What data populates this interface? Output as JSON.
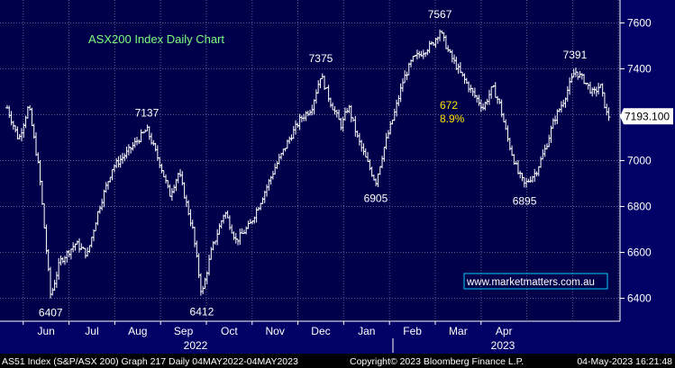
{
  "chart_data": {
    "type": "line",
    "style": "daily price bars",
    "title": "ASX200 Index Daily Chart",
    "watermark": "www.marketmatters.com.au",
    "colors": {
      "background": "#000066",
      "plot_background": "#00004a",
      "grid": "#5a5a8a",
      "price": "#ffffff",
      "title": "#7CFC7C",
      "highlight": "#FFE000",
      "watermark_border": "#00ccff"
    },
    "y_axis": {
      "ylim": [
        6300,
        7700
      ],
      "ticks": [
        6400,
        6600,
        6800,
        7000,
        7200,
        7400,
        7600
      ],
      "tick_labels": [
        "6400",
        "6600",
        "6800",
        "7000",
        "7200",
        "7400",
        "7600"
      ],
      "last_value": 7193.1,
      "last_value_label": "7193.100"
    },
    "x_axis": {
      "months": [
        "Jun",
        "Jul",
        "Aug",
        "Sep",
        "Oct",
        "Nov",
        "Dec",
        "Jan",
        "Feb",
        "Mar",
        "Apr"
      ],
      "years": [
        "2022",
        "2023"
      ]
    },
    "key_points": [
      {
        "t": 0.0,
        "v": 7230
      },
      {
        "t": 0.25,
        "v": 7090
      },
      {
        "t": 0.47,
        "v": 7240
      },
      {
        "t": 0.7,
        "v": 6950
      },
      {
        "t": 0.85,
        "v": 6620
      },
      {
        "t": 0.95,
        "v": 6407
      },
      {
        "t": 1.15,
        "v": 6560
      },
      {
        "t": 1.5,
        "v": 6640
      },
      {
        "t": 1.75,
        "v": 6590
      },
      {
        "t": 2.0,
        "v": 6790
      },
      {
        "t": 2.3,
        "v": 6970
      },
      {
        "t": 2.6,
        "v": 7030
      },
      {
        "t": 3.05,
        "v": 7137
      },
      {
        "t": 3.35,
        "v": 6980
      },
      {
        "t": 3.55,
        "v": 6850
      },
      {
        "t": 3.75,
        "v": 6950
      },
      {
        "t": 4.05,
        "v": 6700
      },
      {
        "t": 4.25,
        "v": 6412
      },
      {
        "t": 4.45,
        "v": 6600
      },
      {
        "t": 4.75,
        "v": 6780
      },
      {
        "t": 5.0,
        "v": 6650
      },
      {
        "t": 5.3,
        "v": 6720
      },
      {
        "t": 5.55,
        "v": 6830
      },
      {
        "t": 5.85,
        "v": 6970
      },
      {
        "t": 6.15,
        "v": 7090
      },
      {
        "t": 6.4,
        "v": 7180
      },
      {
        "t": 6.65,
        "v": 7230
      },
      {
        "t": 6.85,
        "v": 7375
      },
      {
        "t": 7.05,
        "v": 7260
      },
      {
        "t": 7.3,
        "v": 7150
      },
      {
        "t": 7.45,
        "v": 7240
      },
      {
        "t": 7.65,
        "v": 7100
      },
      {
        "t": 7.85,
        "v": 7000
      },
      {
        "t": 8.05,
        "v": 6905
      },
      {
        "t": 8.25,
        "v": 7070
      },
      {
        "t": 8.45,
        "v": 7200
      },
      {
        "t": 8.65,
        "v": 7350
      },
      {
        "t": 8.85,
        "v": 7440
      },
      {
        "t": 9.05,
        "v": 7470
      },
      {
        "t": 9.3,
        "v": 7510
      },
      {
        "t": 9.45,
        "v": 7567
      },
      {
        "t": 9.65,
        "v": 7470
      },
      {
        "t": 9.9,
        "v": 7380
      },
      {
        "t": 10.15,
        "v": 7300
      },
      {
        "t": 10.4,
        "v": 7230
      },
      {
        "t": 10.6,
        "v": 7320
      },
      {
        "t": 10.75,
        "v": 7250
      },
      {
        "t": 10.95,
        "v": 7080
      },
      {
        "t": 11.15,
        "v": 6950
      },
      {
        "t": 11.3,
        "v": 6895
      },
      {
        "t": 11.55,
        "v": 6950
      },
      {
        "t": 11.75,
        "v": 7050
      },
      {
        "t": 11.95,
        "v": 7180
      },
      {
        "t": 12.15,
        "v": 7260
      },
      {
        "t": 12.4,
        "v": 7391
      },
      {
        "t": 12.6,
        "v": 7350
      },
      {
        "t": 12.8,
        "v": 7290
      },
      {
        "t": 12.95,
        "v": 7330
      },
      {
        "t": 13.1,
        "v": 7200
      },
      {
        "t": 13.15,
        "v": 7193
      }
    ],
    "annotations": [
      {
        "text": "6407",
        "t": 0.95,
        "v": 6407,
        "pos": "below"
      },
      {
        "text": "7137",
        "t": 3.05,
        "v": 7137,
        "pos": "above"
      },
      {
        "text": "6412",
        "t": 4.25,
        "v": 6412,
        "pos": "below"
      },
      {
        "text": "7375",
        "t": 6.85,
        "v": 7375,
        "pos": "above"
      },
      {
        "text": "6905",
        "t": 8.05,
        "v": 6905,
        "pos": "below"
      },
      {
        "text": "7567",
        "t": 9.45,
        "v": 7567,
        "pos": "above"
      },
      {
        "text": "6895",
        "t": 11.3,
        "v": 6895,
        "pos": "below"
      },
      {
        "text": "7391",
        "t": 12.4,
        "v": 7391,
        "pos": "above"
      }
    ],
    "move_annotation": {
      "points": "672",
      "percent": "8.9%"
    },
    "grid": true
  },
  "footer": {
    "left": "AS51 Index (S&P/ASX 200) Graph 217  Daily 04MAY2022-04MAY2023",
    "center": "Copyright© 2023 Bloomberg Finance L.P.",
    "right": "04-May-2023 16:21:48"
  }
}
